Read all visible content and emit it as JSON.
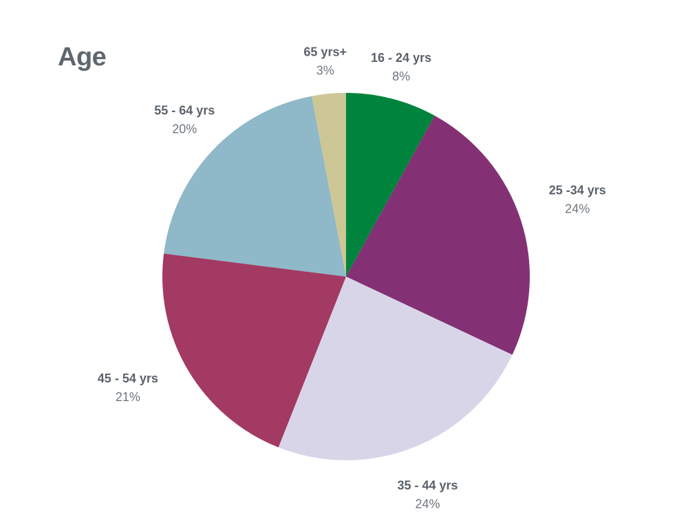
{
  "chart_data": {
    "type": "pie",
    "title": "Age",
    "categories": [
      "16 - 24 yrs",
      "25 -34 yrs",
      "35 - 44 yrs",
      "45 - 54 yrs",
      "55 - 64 yrs",
      "65 yrs+"
    ],
    "values": [
      8,
      24,
      24,
      21,
      20,
      3
    ],
    "value_labels": [
      "8%",
      "24%",
      "24%",
      "21%",
      "20%",
      "3%"
    ],
    "colors": [
      "#00843d",
      "#833174",
      "#d9d5e8",
      "#a33a63",
      "#8fb8c9",
      "#cdc695"
    ],
    "start": "top",
    "direction": "clockwise",
    "legend": "none"
  }
}
